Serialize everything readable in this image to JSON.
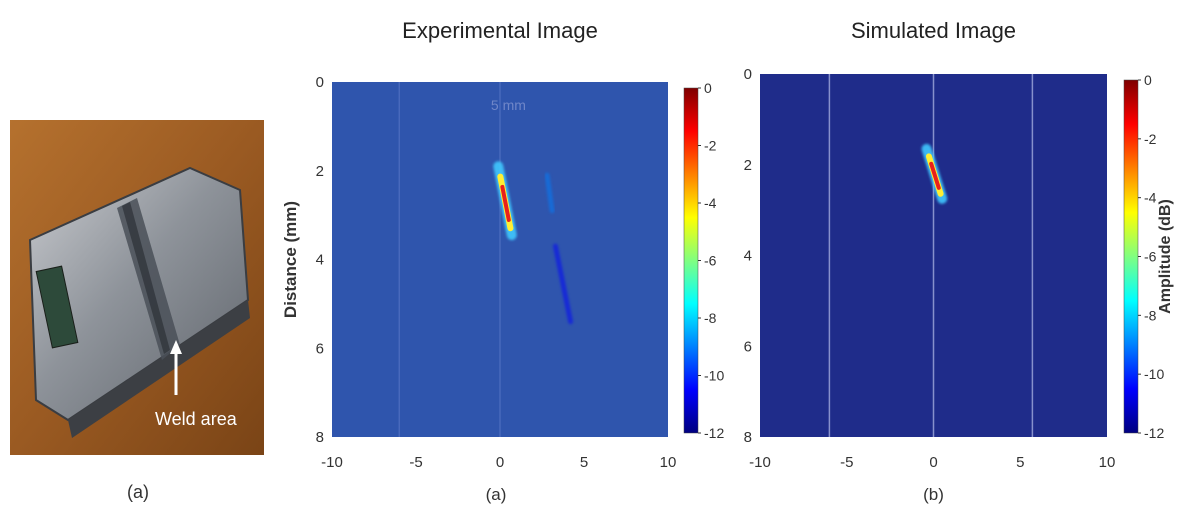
{
  "photo": {
    "annotation": "Weld area",
    "caption": "(a)"
  },
  "colorbar": {
    "ticks": [
      0,
      -2,
      -4,
      -6,
      -8,
      -10,
      -12
    ],
    "label": "Amplitude (dB)",
    "colormap": [
      "#00007f",
      "#0000ff",
      "#0080ff",
      "#00ffff",
      "#80ff80",
      "#ffff00",
      "#ff8000",
      "#ff0000",
      "#7f0000"
    ]
  },
  "chart_data": [
    {
      "type": "heatmap",
      "title": "Experimental Image",
      "caption": "(a)",
      "ylabel": "Distance (mm)",
      "xlabel": "",
      "xlim": [
        -10,
        10
      ],
      "ylim": [
        8,
        0
      ],
      "xticks": [
        -10,
        -5,
        0,
        5,
        10
      ],
      "yticks": [
        0,
        2,
        4,
        6,
        8
      ],
      "background_db": -11,
      "background_color": "#2f55ad",
      "annotation": {
        "text": "5 mm",
        "x": 0.5,
        "y": 0.5
      },
      "features": [
        {
          "x1": -0.1,
          "y1": 1.9,
          "x2": 0.7,
          "y2": 3.45,
          "peak_db": 0
        },
        {
          "x1": 2.8,
          "y1": 2.1,
          "x2": 3.1,
          "y2": 2.9,
          "peak_db": -9
        },
        {
          "x1": 3.3,
          "y1": 3.7,
          "x2": 4.2,
          "y2": 5.4,
          "peak_db": -10.5
        }
      ],
      "vertical_lines": [
        -6,
        0
      ]
    },
    {
      "type": "heatmap",
      "title": "Simulated Image",
      "caption": "(b)",
      "ylabel": "",
      "xlabel": "",
      "xlim": [
        -10,
        10
      ],
      "ylim": [
        8,
        0
      ],
      "xticks": [
        -10,
        -5,
        0,
        5,
        10
      ],
      "yticks": [
        0,
        2,
        4,
        6,
        8
      ],
      "background_db": -12,
      "background_color": "#1f2c8a",
      "features": [
        {
          "x1": -0.4,
          "y1": 1.65,
          "x2": 0.5,
          "y2": 2.75,
          "peak_db": 0
        }
      ],
      "vertical_lines": [
        -6,
        0,
        5.7
      ]
    }
  ]
}
